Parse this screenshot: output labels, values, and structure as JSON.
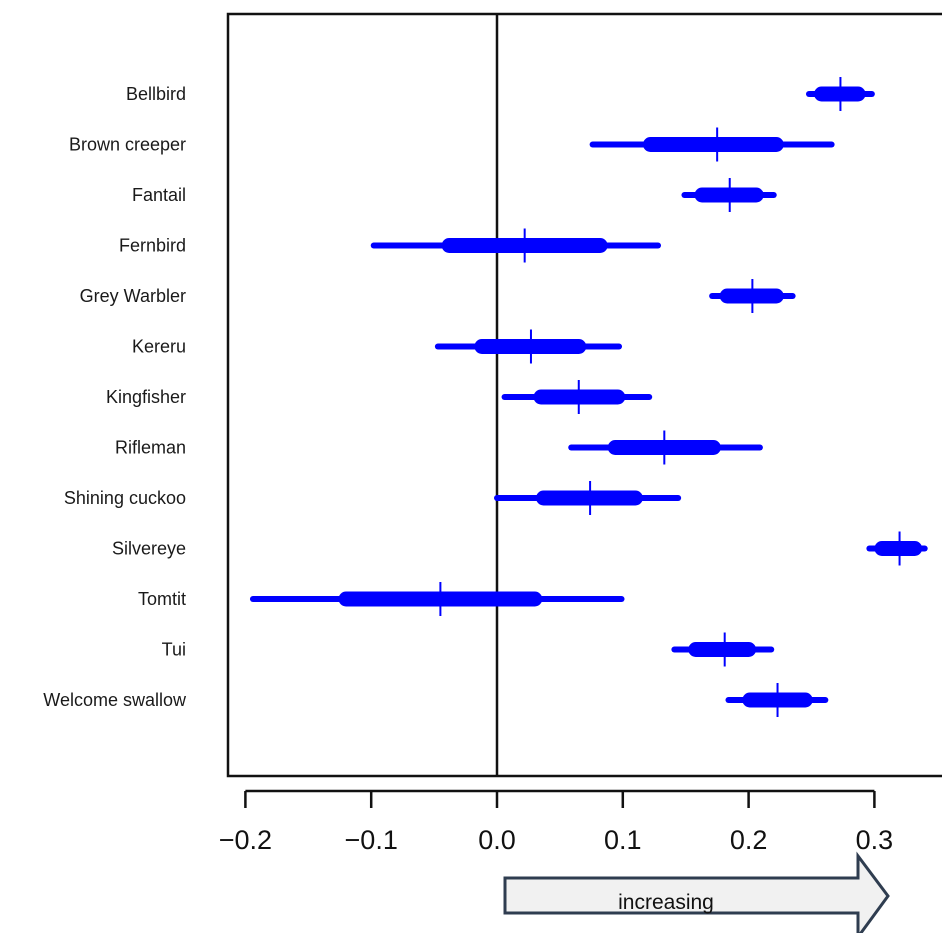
{
  "chart_data": {
    "type": "forest",
    "title": "",
    "xlabel": "",
    "ylabel": "",
    "xlim": [
      -0.21,
      0.355
    ],
    "xticks": [
      "-0.2",
      "-0.1",
      "0.0",
      "0.1",
      "0.2",
      "0.3"
    ],
    "xtick_values": [
      -0.2,
      -0.1,
      0.0,
      0.1,
      0.2,
      0.3
    ],
    "reference_line": 0.0,
    "series_color": "#0000ff",
    "annotation": {
      "label": "increasing",
      "direction": "right"
    },
    "species": [
      {
        "name": "Bellbird",
        "median": 0.273,
        "inner": [
          0.258,
          0.287
        ],
        "outer": [
          0.248,
          0.298
        ]
      },
      {
        "name": "Brown creeper",
        "median": 0.175,
        "inner": [
          0.122,
          0.222
        ],
        "outer": [
          0.076,
          0.266
        ]
      },
      {
        "name": "Fantail",
        "median": 0.185,
        "inner": [
          0.163,
          0.206
        ],
        "outer": [
          0.149,
          0.22
        ]
      },
      {
        "name": "Fernbird",
        "median": 0.022,
        "inner": [
          -0.038,
          0.082
        ],
        "outer": [
          -0.098,
          0.128
        ]
      },
      {
        "name": "Grey Warbler",
        "median": 0.203,
        "inner": [
          0.183,
          0.222
        ],
        "outer": [
          0.171,
          0.235
        ]
      },
      {
        "name": "Kereru",
        "median": 0.027,
        "inner": [
          -0.012,
          0.065
        ],
        "outer": [
          -0.047,
          0.097
        ]
      },
      {
        "name": "Kingfisher",
        "median": 0.065,
        "inner": [
          0.035,
          0.096
        ],
        "outer": [
          0.006,
          0.121
        ]
      },
      {
        "name": "Rifleman",
        "median": 0.133,
        "inner": [
          0.094,
          0.172
        ],
        "outer": [
          0.059,
          0.209
        ]
      },
      {
        "name": "Shining cuckoo",
        "median": 0.074,
        "inner": [
          0.037,
          0.11
        ],
        "outer": [
          0.0,
          0.144
        ]
      },
      {
        "name": "Silvereye",
        "median": 0.32,
        "inner": [
          0.306,
          0.332
        ],
        "outer": [
          0.296,
          0.34
        ]
      },
      {
        "name": "Tomtit",
        "median": -0.045,
        "inner": [
          -0.12,
          0.03
        ],
        "outer": [
          -0.194,
          0.099
        ]
      },
      {
        "name": "Tui",
        "median": 0.181,
        "inner": [
          0.158,
          0.2
        ],
        "outer": [
          0.141,
          0.218
        ]
      },
      {
        "name": "Welcome swallow",
        "median": 0.223,
        "inner": [
          0.201,
          0.245
        ],
        "outer": [
          0.184,
          0.261
        ]
      }
    ]
  }
}
